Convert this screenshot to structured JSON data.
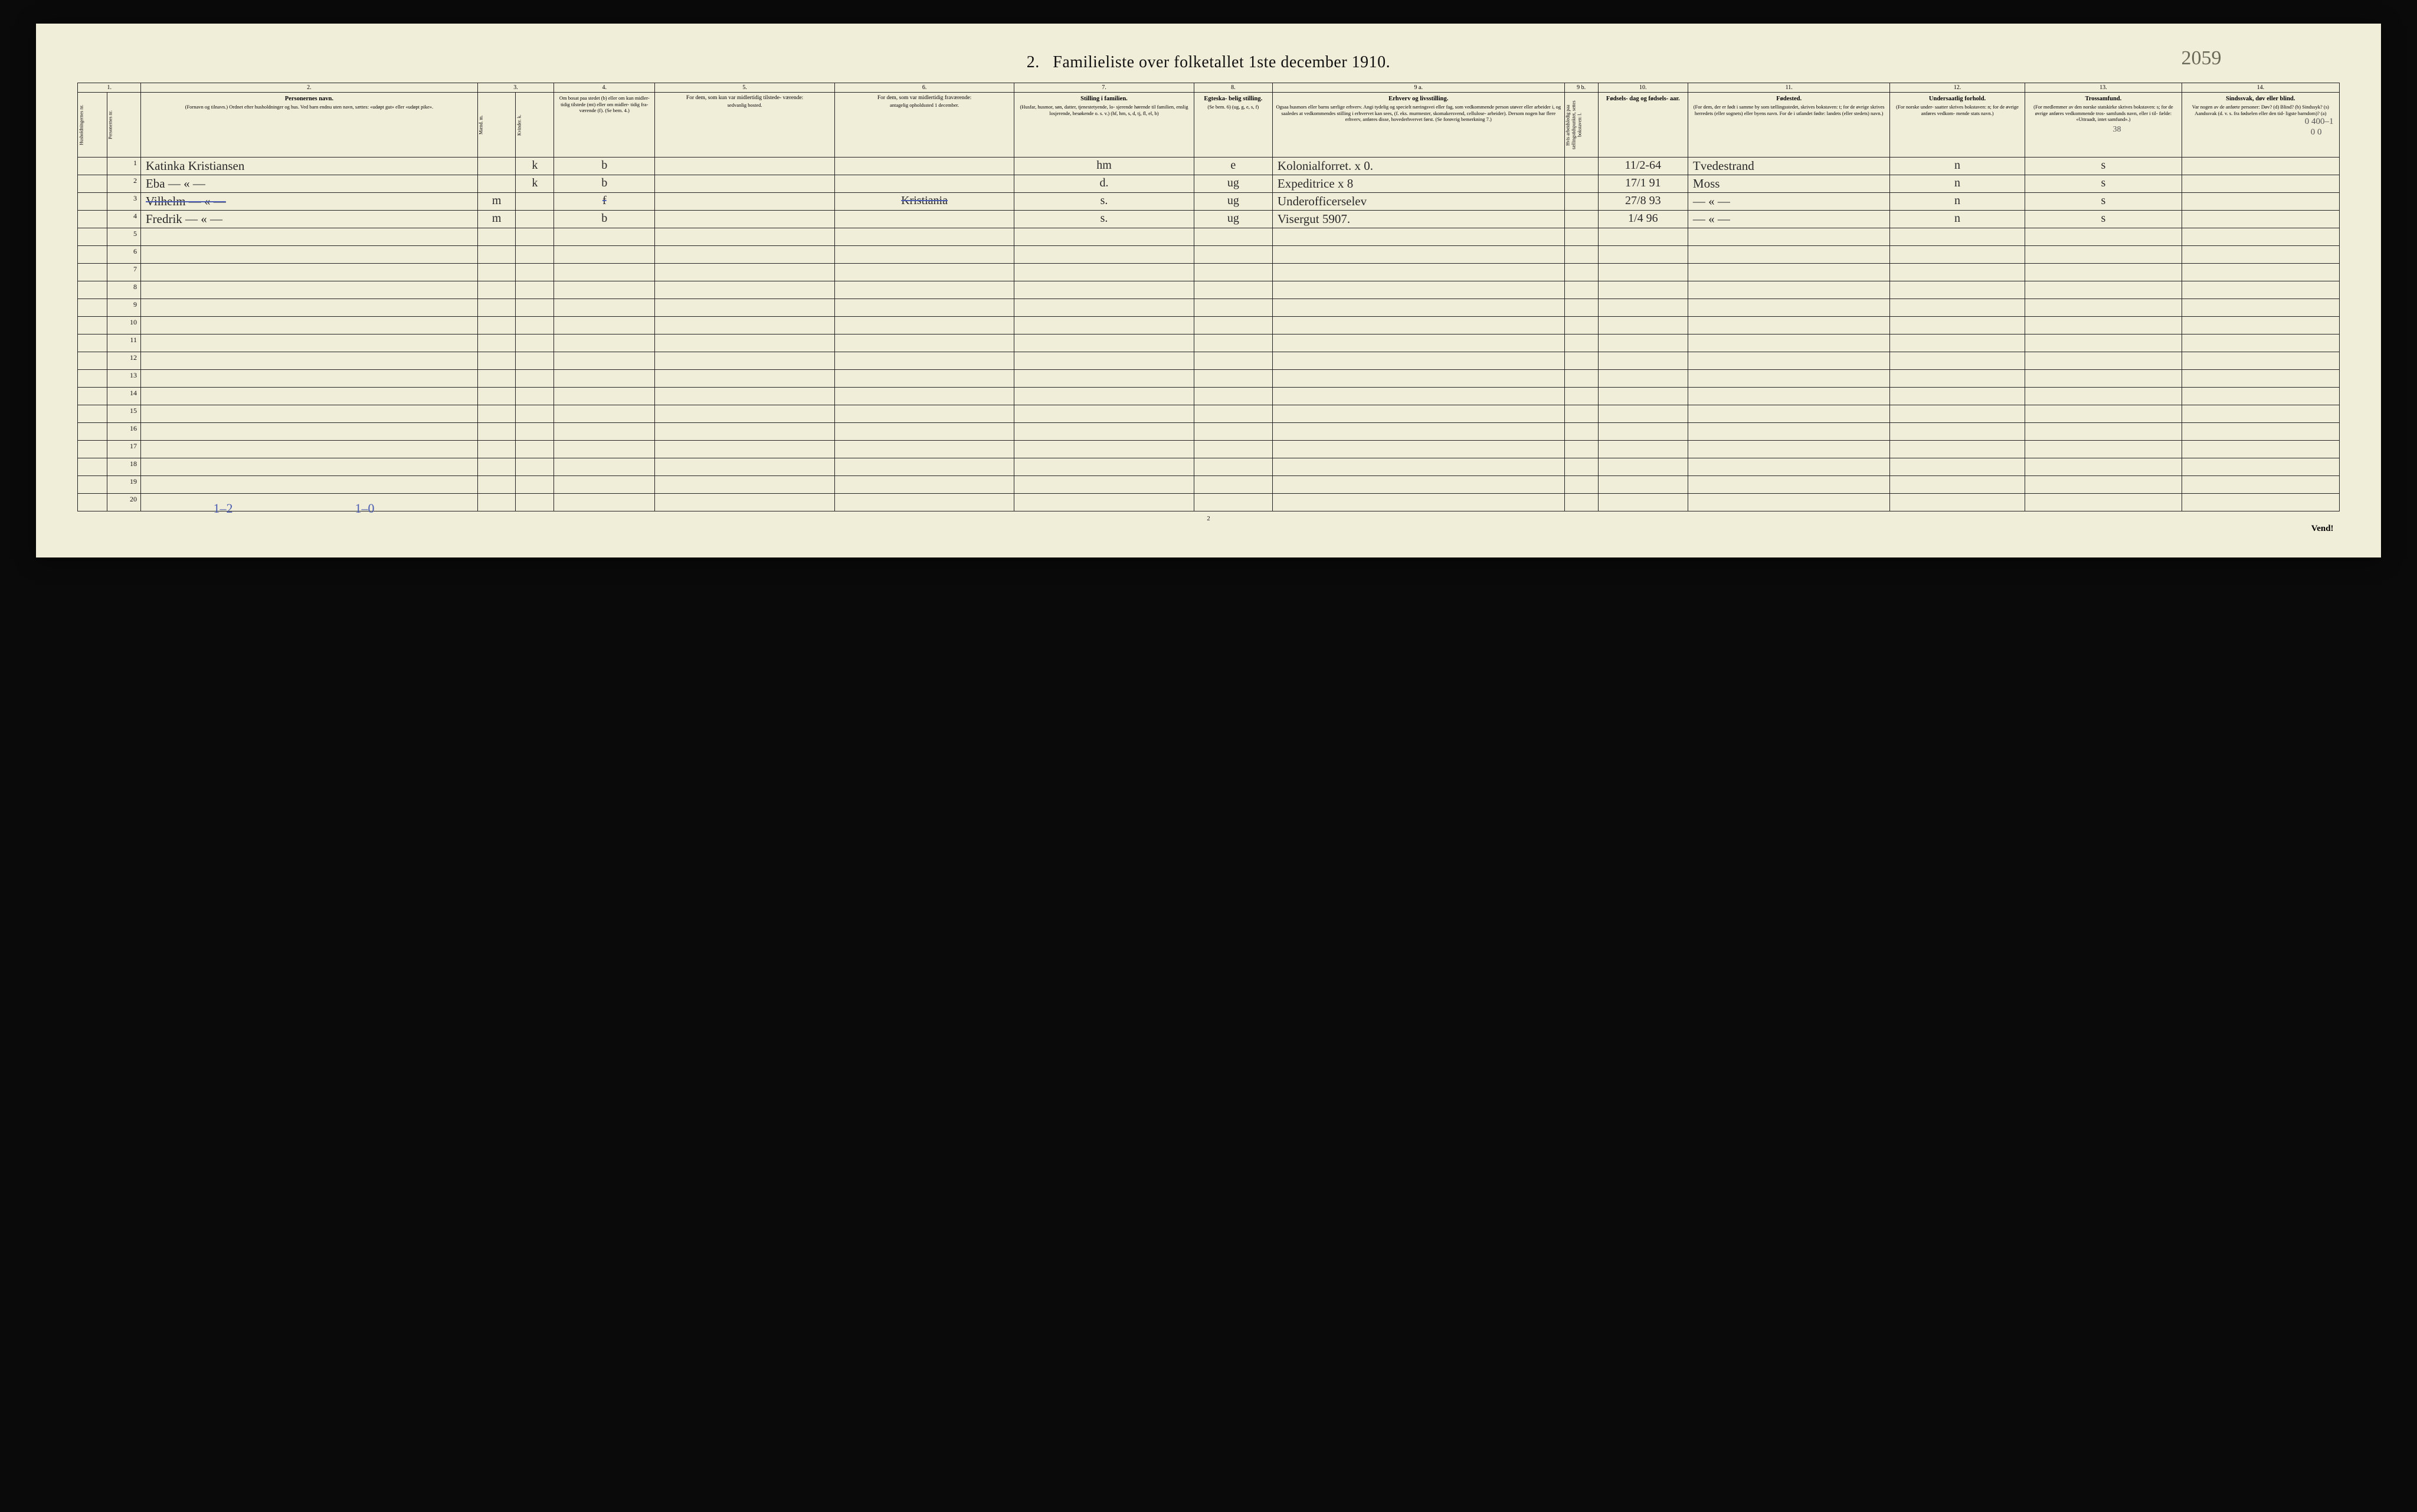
{
  "title_prefix": "2.",
  "title": "Familieliste over folketallet 1ste december 1910.",
  "handwritten_top_right": "2059",
  "footer_page": "2",
  "footer_vend": "Vend!",
  "blue_bottom_left": "1–2",
  "blue_bottom_mid": "1–0",
  "margin_top_right_small": "0  400–1",
  "margin_top_right_small2": "0   0",
  "small_38": "38",
  "col_numbers": [
    "1.",
    "",
    "2.",
    "3.",
    "",
    "4.",
    "5.",
    "6.",
    "7.",
    "8.",
    "9 a.",
    "9 b.",
    "10.",
    "11.",
    "12.",
    "13.",
    "14."
  ],
  "headers": {
    "c1": "Husholdningernes nr.",
    "c1b": "Personernes nr.",
    "c2_title": "Personernes navn.",
    "c2_sub": "(Fornavn og tilnavn.)\nOrdnet efter husholdninger og hus.\nVed barn endnu uten navn, sættes: «udøpt gut» eller «udøpt pike».",
    "c3_title": "Kjøn.",
    "c3a": "Mænd.\nm.",
    "c3b": "Kvinder.\nk.",
    "c4_title": "Om bosat\npaa stedet\n(b) eller om\nkun midler-\ntidig tilstede\n(mt) eller\nom midler-\ntidig fra-\nværende (f).\n(Se bem. 4.)",
    "c5_title": "For dem, som kun var\nmidlertidig tilstede-\nværende:",
    "c5_sub": "sedvanlig bosted.",
    "c6_title": "For dem, som var\nmidlertidig\nfraværende:",
    "c6_sub": "antagelig opholdssted\n1 december.",
    "c7_title": "Stilling i familien.",
    "c7_sub": "(Husfar, husmor, søn,\ndatter, tjenestetyende, lo-\nsjerende hørende til familien,\nenslig losjerende, besøkende\no. s. v.)\n(hf, hm, s, d, tj, fl,\nel, b)",
    "c8_title": "Egteska-\nbelig\nstilling.",
    "c8_sub": "(Se bem. 6)\n(ug, g,\ne, s, f)",
    "c9a_title": "Erhverv og livsstilling.",
    "c9a_sub": "Ogsaa husmors eller barns særlige erhverv.\nAngi tydelig og specielt næringsvei eller fag, som\nvedkommende person utøver eller arbeider i,\nog saaledes at vedkommendes stilling i erhvervet kan\nsees, (f. eks. murmester, skomakersvend, cellulose-\narbeider). Dersom nogen har flere erhverv,\nanføres disse, hovederhvervet først.\n(Se forøvrig bemerkning 7.)",
    "c9b": "Hvis arbeidsledig\npaa tællingstidspunktet,\nsettes bokstaven: l.",
    "c10_title": "Fødsels-\ndag\nog\nfødsels-\naar.",
    "c11_title": "Fødested.",
    "c11_sub": "(For dem, der er født\ni samme by som\ntællingsstedet,\nskrives bokstaven: t;\nfor de øvrige skrives\nherredets (eller sognets)\neller byens navn.\nFor de i utlandet fødte:\nlandets (eller stedets)\nnavn.)",
    "c12_title": "Undersaatlig\nforhold.",
    "c12_sub": "(For norske under-\nsaatter skrives\nbokstaven: n;\nfor de øvrige\nanføres vedkom-\nmende stats navn.)",
    "c13_title": "Trossamfund.",
    "c13_sub": "(For medlemmer av\nden norske statskirke\nskrives bokstaven: s;\nfor de øvrige anføres\nvedkommende tros-\nsamfunds navn, eller i til-\nfælde: «Uttraadt, intet\nsamfund».)",
    "c14_title": "Sindssvak, døv\neller blind.",
    "c14_sub": "Var nogen av de anførte\npersoner:\nDøv?      (d)\nBlind?    (b)\nSindssyk? (s)\nAandssvak (d. v. s. fra\nfødselen eller den tid-\nligste barndom)? (a)"
  },
  "rows": [
    {
      "num": "1",
      "name": "Katinka Kristiansen",
      "m": "",
      "k": "k",
      "res": "b",
      "mt": "",
      "fv": "",
      "fam": "hm",
      "egte": "e",
      "erhv": "Kolonialforret.   x 0.",
      "al": "",
      "fdato": "11/2-64",
      "fsted": "Tvedestrand",
      "stat": "n",
      "tro": "s",
      "sind": ""
    },
    {
      "num": "2",
      "name": "Eba       —  «  —",
      "m": "",
      "k": "k",
      "res": "b",
      "mt": "",
      "fv": "",
      "fam": "d.",
      "egte": "ug",
      "erhv": "Expeditrice        x 8",
      "al": "",
      "fdato": "17/1 91",
      "fsted": "Moss",
      "stat": "n",
      "tro": "s",
      "sind": ""
    },
    {
      "num": "3",
      "name": "Vilhelm  —  «  —",
      "m": "m",
      "k": "",
      "res": "f",
      "mt": "",
      "fv": "Kristiania",
      "fam": "s.",
      "egte": "ug",
      "erhv": "Underofficerselev",
      "al": "",
      "fdato": "27/8 93",
      "fsted": "—  «  —",
      "fsted_struck": false,
      "stat": "n",
      "tro": "s",
      "sind": "",
      "struck": true
    },
    {
      "num": "4",
      "name": "Fredrik  —  «  —",
      "m": "m",
      "k": "",
      "res": "b",
      "mt": "",
      "fv": "",
      "fam": "s.",
      "egte": "ug",
      "erhv": "Visergut    5907.",
      "al": "",
      "fdato": "1/4 96",
      "fsted": "—  «  —",
      "stat": "n",
      "tro": "s",
      "sind": ""
    }
  ],
  "empty_rows": [
    "5",
    "6",
    "7",
    "8",
    "9",
    "10",
    "11",
    "12",
    "13",
    "14",
    "15",
    "16",
    "17",
    "18",
    "19",
    "20"
  ]
}
